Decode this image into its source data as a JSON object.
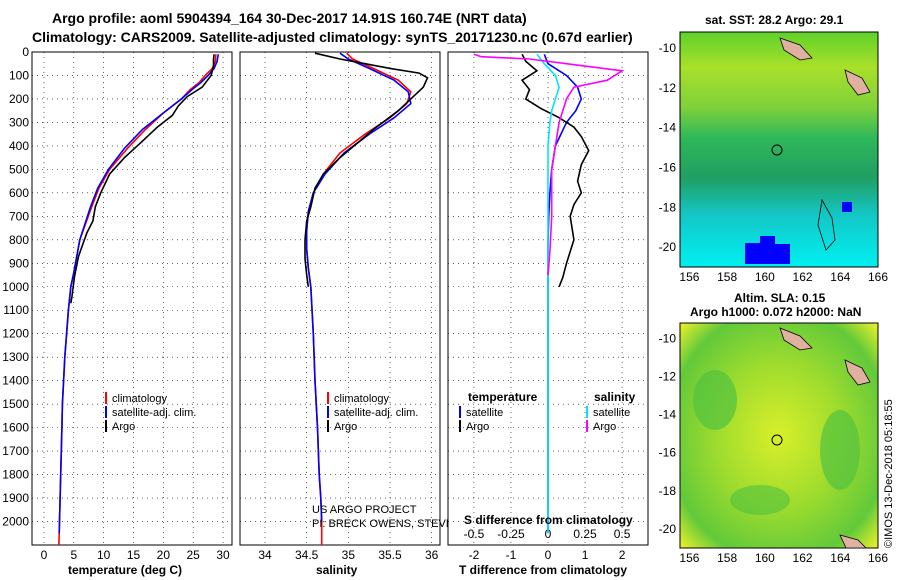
{
  "header": {
    "line1": "Argo profile: aoml 5904394_164 30-Dec-2017 14.91S 160.74E (NRT data)",
    "line2": "Climatology: CARS2009. Satellite-adjusted climatology: synTS_20171230.nc (0.67d earlier)"
  },
  "colors": {
    "argo": "#000000",
    "clim": "#ff0000",
    "sat": "#0000ff",
    "sal_sat": "#00e5ff",
    "sal_argo": "#ff00ff"
  },
  "credit": {
    "line1": "US ARGO PROJECT",
    "line2": "PI: BRECK OWENS, STEVE JAYNE, P.E. ROBBINS"
  },
  "stamp": "©IMOS 13-Dec-2018 05:18:55",
  "chart_data": [
    {
      "type": "line",
      "name": "temperature",
      "xlabel": "temperature (deg C)",
      "xlim": [
        -2,
        31.5
      ],
      "xticks": [
        0,
        5,
        10,
        15,
        20,
        25,
        30
      ],
      "ylim": [
        0,
        2100
      ],
      "yticks": [
        0,
        100,
        200,
        300,
        400,
        500,
        600,
        700,
        800,
        900,
        1000,
        1100,
        1200,
        1300,
        1400,
        1500,
        1600,
        1700,
        1800,
        1900,
        2000
      ],
      "legend": [
        "climatology",
        "satellite-adj. clim.",
        "Argo"
      ],
      "series": [
        {
          "name": "climatology",
          "color": "clim",
          "x": [
            28.8,
            28.7,
            28.2,
            27,
            26,
            24.5,
            23,
            20,
            17,
            14,
            11,
            9.2,
            8,
            7,
            6,
            5.5,
            5,
            4.5,
            4.1,
            3.8,
            3.5,
            3.3,
            3.1,
            3,
            2.9,
            2.8,
            2.7,
            2.65,
            2.6,
            2.55,
            2.5
          ],
          "y": [
            10,
            40,
            70,
            100,
            130,
            160,
            200,
            260,
            330,
            410,
            500,
            580,
            660,
            730,
            800,
            870,
            940,
            1000,
            1100,
            1200,
            1300,
            1400,
            1500,
            1600,
            1700,
            1800,
            1900,
            1950,
            2000,
            2050,
            2100
          ]
        },
        {
          "name": "satellite-adj. clim.",
          "color": "sat",
          "x": [
            29.2,
            29,
            28.5,
            27.5,
            26.3,
            24.8,
            23,
            20,
            16.5,
            13.5,
            10.8,
            9,
            7.8,
            6.9,
            6,
            5.5,
            5,
            4.5,
            4.1,
            3.8,
            3.5,
            3.3,
            3.1,
            3,
            2.9,
            2.8,
            2.7,
            2.65,
            2.6,
            2.55
          ],
          "y": [
            10,
            40,
            70,
            100,
            130,
            160,
            200,
            260,
            330,
            410,
            500,
            580,
            660,
            730,
            800,
            870,
            940,
            1000,
            1100,
            1200,
            1300,
            1400,
            1500,
            1600,
            1700,
            1800,
            1900,
            1950,
            2000,
            2050
          ]
        },
        {
          "name": "Argo",
          "color": "argo",
          "x": [
            28.5,
            28.4,
            28.4,
            28,
            26.5,
            24,
            22.5,
            21.5,
            19,
            16.5,
            13.5,
            11,
            9.5,
            8.6,
            8.2,
            7.2,
            6.5,
            5.8,
            5.4,
            5.1,
            4.9,
            4.7,
            4.5
          ],
          "y": [
            10,
            30,
            60,
            100,
            150,
            190,
            230,
            270,
            320,
            380,
            450,
            520,
            600,
            660,
            720,
            770,
            820,
            870,
            920,
            960,
            1000,
            1040,
            1070
          ]
        }
      ]
    },
    {
      "type": "line",
      "name": "salinity",
      "xlabel": "salinity",
      "xlim": [
        33.7,
        36.1
      ],
      "xticks": [
        34,
        34.5,
        35,
        35.5,
        36
      ],
      "ylim": [
        0,
        2100
      ],
      "legend": [
        "climatology",
        "satellite-adj. clim.",
        "Argo"
      ],
      "series": [
        {
          "name": "climatology",
          "color": "clim",
          "x": [
            34.98,
            35.05,
            35.3,
            35.6,
            35.75,
            35.7,
            35.5,
            35.2,
            34.9,
            34.7,
            34.58,
            34.52,
            34.5,
            34.5,
            34.52,
            34.55,
            34.58,
            34.6,
            34.63,
            34.65,
            34.67,
            34.68,
            34.68
          ],
          "y": [
            5,
            30,
            70,
            120,
            170,
            220,
            280,
            350,
            430,
            520,
            600,
            680,
            760,
            840,
            920,
            1000,
            1200,
            1400,
            1600,
            1800,
            1900,
            2000,
            2100
          ]
        },
        {
          "name": "satellite-adj. clim.",
          "color": "sat",
          "x": [
            34.9,
            35,
            35.25,
            35.55,
            35.72,
            35.75,
            35.55,
            35.25,
            34.95,
            34.72,
            34.58,
            34.52,
            34.5,
            34.5,
            34.52,
            34.55,
            34.58,
            34.6,
            34.63,
            34.65,
            34.67,
            34.68
          ],
          "y": [
            5,
            30,
            70,
            120,
            170,
            220,
            280,
            350,
            430,
            520,
            600,
            680,
            760,
            840,
            920,
            1000,
            1200,
            1400,
            1600,
            1800,
            1900,
            2000
          ]
        },
        {
          "name": "Argo",
          "color": "argo",
          "x": [
            34.6,
            34.9,
            35.2,
            35.5,
            35.85,
            35.95,
            35.9,
            35.6,
            35.3,
            35.1,
            34.9,
            34.7,
            34.6,
            34.55,
            34.5,
            34.48,
            34.48,
            34.5,
            34.52
          ],
          "y": [
            5,
            30,
            50,
            70,
            90,
            110,
            150,
            250,
            330,
            390,
            450,
            520,
            580,
            660,
            720,
            800,
            880,
            950,
            1000
          ]
        }
      ]
    },
    {
      "type": "line",
      "name": "difference",
      "xlabel": "T difference from climatology",
      "xlabel2": "S difference from climatology",
      "xlim": [
        -2.7,
        2.7
      ],
      "xticks": [
        -2,
        -1,
        0,
        1,
        2
      ],
      "xticks_top": [
        "-0.5",
        "-0.25",
        "0",
        "0.25",
        "0.5"
      ],
      "ylim": [
        0,
        2100
      ],
      "legend_left": [
        "temperature",
        "satellite",
        "Argo"
      ],
      "legend_right": [
        "salinity",
        "satellite",
        "Argo"
      ],
      "series": [
        {
          "name": "T satellite",
          "color": "sat",
          "x": [
            -0.1,
            0,
            0.5,
            0.8,
            0.9,
            0.75,
            0.5,
            0.2,
            0.1,
            0.05,
            0.02,
            0,
            0,
            0,
            0,
            0
          ],
          "y": [
            10,
            50,
            100,
            150,
            200,
            250,
            300,
            400,
            500,
            600,
            700,
            800,
            1000,
            1400,
            1800,
            2050
          ]
        },
        {
          "name": "T Argo",
          "color": "argo",
          "x": [
            -0.7,
            -0.6,
            -0.3,
            -0.7,
            -0.5,
            -0.6,
            -0.2,
            0.3,
            0.7,
            0.9,
            1.1,
            0.9,
            0.8,
            0.9,
            0.7,
            0.6,
            0.7,
            0.5,
            0.4,
            0.3
          ],
          "y": [
            10,
            40,
            80,
            120,
            160,
            200,
            240,
            280,
            320,
            360,
            420,
            480,
            550,
            600,
            650,
            700,
            800,
            900,
            960,
            1000
          ]
        },
        {
          "name": "S satellite",
          "color": "sal_sat",
          "x": [
            -0.3,
            -0.1,
            0.2,
            0.3,
            0.2,
            0.1,
            0.05,
            0,
            0,
            0,
            0,
            0
          ],
          "y": [
            10,
            50,
            100,
            150,
            200,
            250,
            300,
            400,
            500,
            800,
            1500,
            2050
          ]
        },
        {
          "name": "S Argo",
          "color": "sal_argo",
          "x": [
            -2.0,
            -1.8,
            -0.5,
            1.0,
            2.0,
            1.6,
            0.7,
            0.5,
            0.3,
            0.1,
            0.1,
            0.05,
            0
          ],
          "y": [
            10,
            20,
            30,
            60,
            80,
            120,
            150,
            200,
            300,
            500,
            700,
            850,
            950
          ]
        }
      ]
    },
    {
      "type": "heatmap",
      "name": "sst-map",
      "title": "sat. SST: 28.2 Argo: 29.1",
      "xticks": [
        156,
        158,
        160,
        162,
        164,
        166
      ],
      "yticks": [
        -10,
        -12,
        -14,
        -16,
        -18,
        -20
      ],
      "xlim": [
        155.5,
        166
      ],
      "ylim": [
        -21,
        -9.2
      ],
      "marker": [
        160.74,
        -14.91
      ]
    },
    {
      "type": "heatmap",
      "name": "sla-map",
      "title": "Altim. SLA: 0.15",
      "subtitle": "Argo h1000: 0.072 h2000: NaN",
      "xticks": [
        156,
        158,
        160,
        162,
        164,
        166
      ],
      "yticks": [
        -10,
        -12,
        -14,
        -16,
        -18,
        -20
      ],
      "xlim": [
        155.5,
        166
      ],
      "ylim": [
        -21,
        -9.2
      ],
      "marker": [
        160.74,
        -14.91
      ]
    }
  ]
}
